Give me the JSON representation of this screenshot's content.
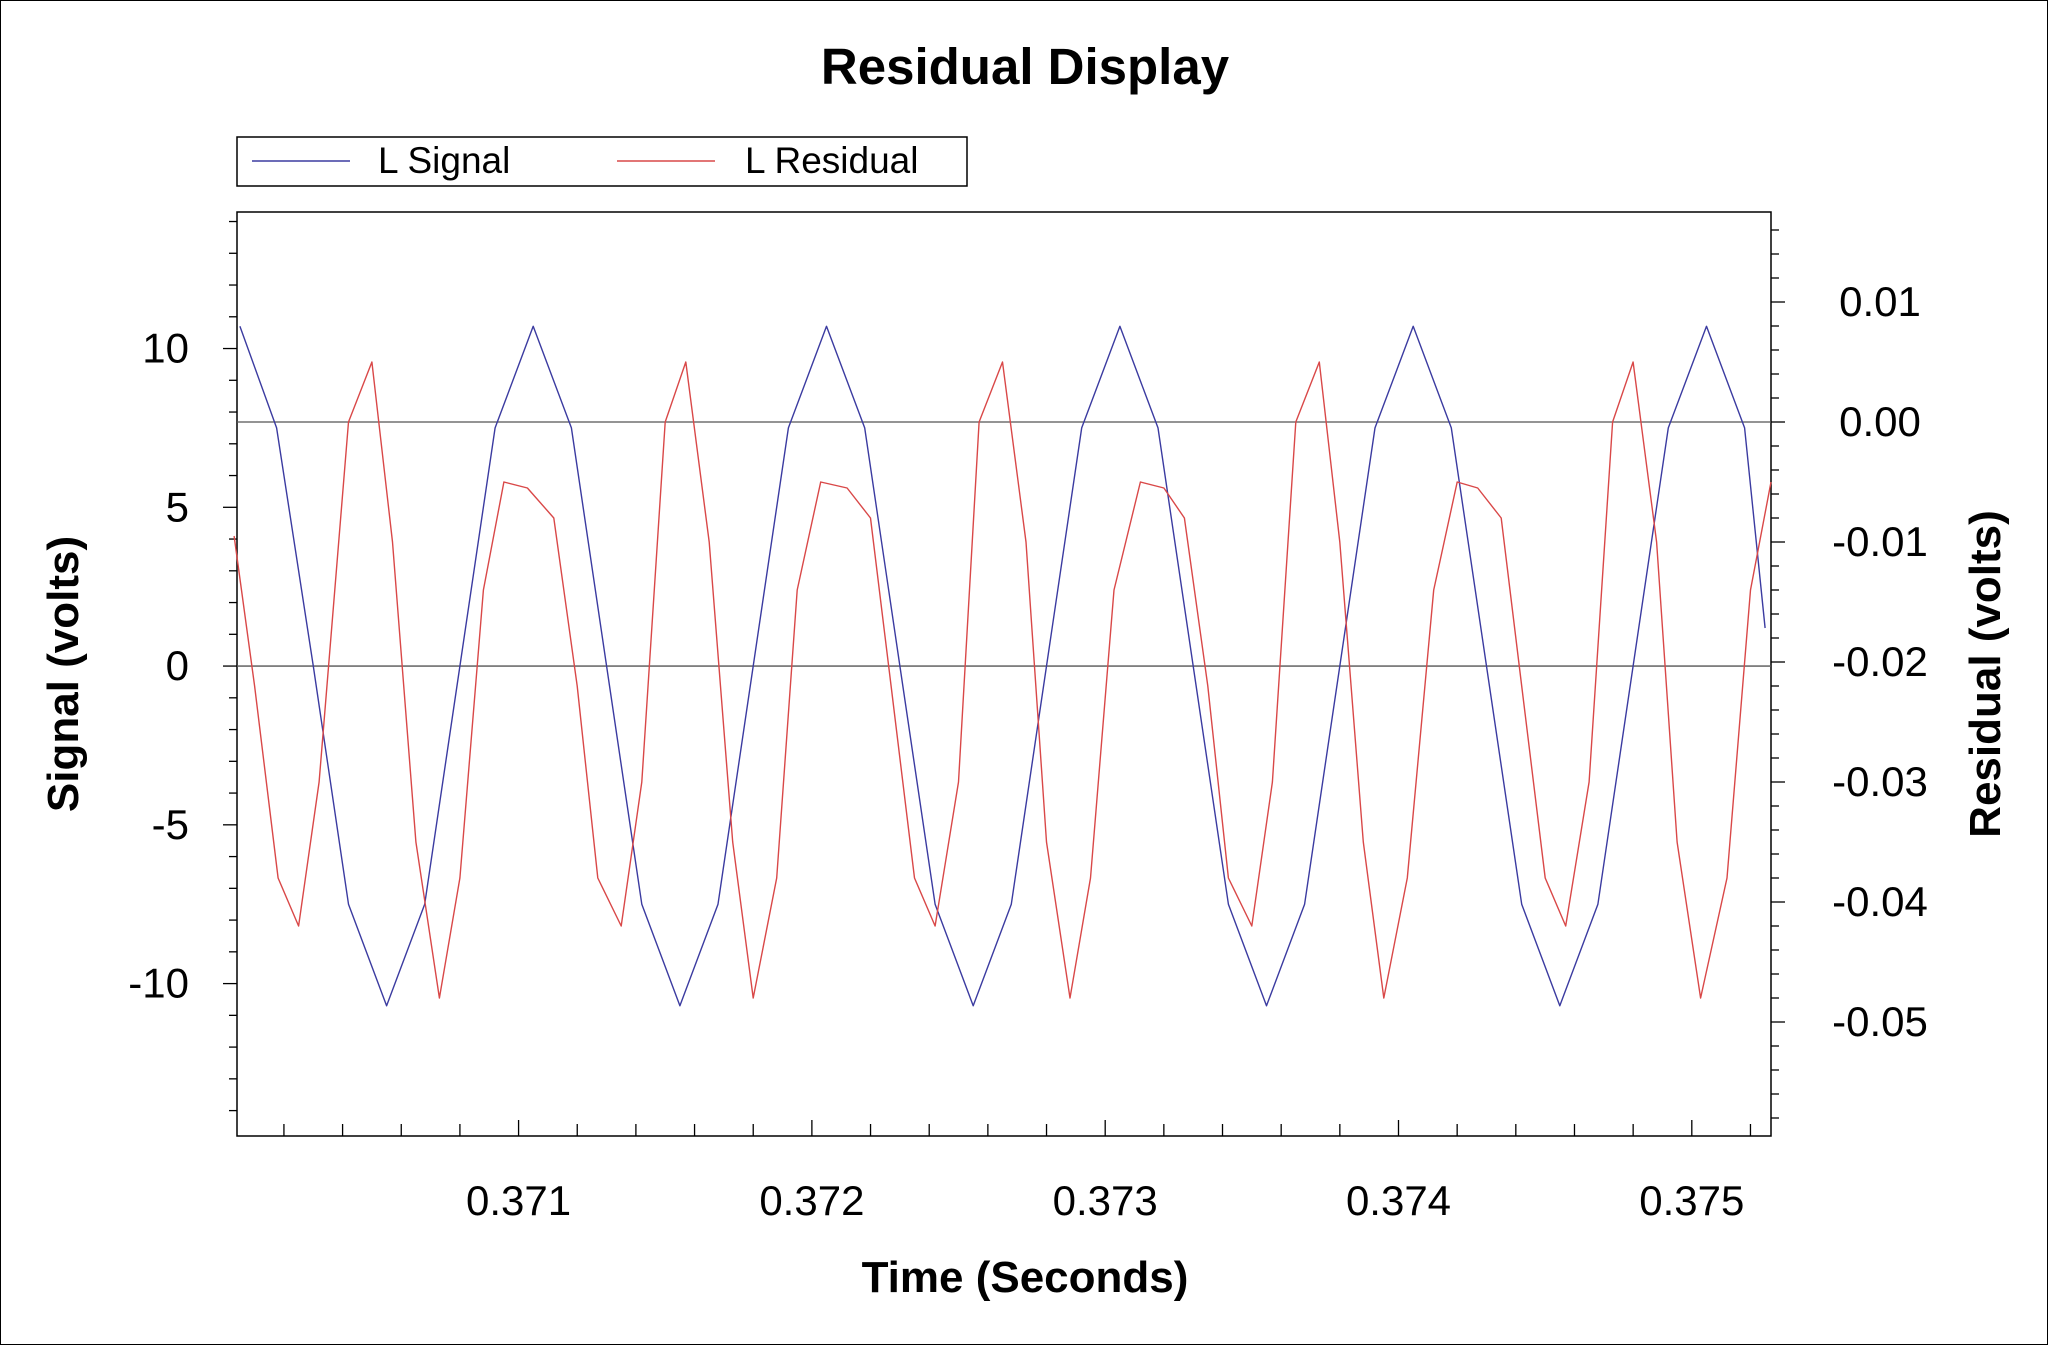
{
  "chart_data": {
    "type": "line",
    "title": "Residual Display",
    "xlabel": "Time (Seconds)",
    "ylabel": "Signal (volts)",
    "y2label": "Residual (volts)",
    "xlim": [
      0.37004,
      0.37527
    ],
    "ylim": [
      -14.8,
      14.3
    ],
    "y2lim": [
      -0.0595,
      0.0175
    ],
    "x_ticks": [
      0.371,
      0.372,
      0.373,
      0.374,
      0.375
    ],
    "x_tick_labels": [
      "0.371",
      "0.372",
      "0.373",
      "0.374",
      "0.375"
    ],
    "y_ticks": [
      10,
      5,
      0,
      -5,
      -10
    ],
    "y_tick_labels": [
      "10",
      "5",
      "0",
      "-5",
      "-10"
    ],
    "y2_ticks": [
      0.01,
      0.0,
      -0.01,
      -0.02,
      -0.03,
      -0.04,
      -0.05
    ],
    "y2_tick_labels": [
      "0.01",
      "0.00",
      "-0.01",
      "-0.02",
      "-0.03",
      "-0.04",
      "-0.05"
    ],
    "grid": false,
    "reference_lines": [
      {
        "axis": "y",
        "value": 0
      },
      {
        "axis": "y2",
        "value": 0.0
      }
    ],
    "legend_position": "top-left",
    "series": [
      {
        "name": "L Signal",
        "axis": "left",
        "color": "#3b3ba0",
        "x": [
          0.37005,
          0.370175,
          0.3703,
          0.37042,
          0.37055,
          0.37068,
          0.3708,
          0.37092,
          0.37105,
          0.37118,
          0.3713,
          0.37142,
          0.37155,
          0.37168,
          0.3718,
          0.37192,
          0.37205,
          0.37218,
          0.3723,
          0.37242,
          0.37255,
          0.37268,
          0.3728,
          0.37292,
          0.37305,
          0.37318,
          0.3733,
          0.37342,
          0.37355,
          0.37368,
          0.3738,
          0.37392,
          0.37405,
          0.37418,
          0.3743,
          0.37442,
          0.37455,
          0.37468,
          0.3748,
          0.37492,
          0.37505,
          0.37518,
          0.37525
        ],
        "y": [
          10.7,
          7.5,
          0,
          -7.5,
          -10.7,
          -7.5,
          0,
          7.5,
          10.7,
          7.5,
          0,
          -7.5,
          -10.7,
          -7.5,
          0,
          7.5,
          10.7,
          7.5,
          0,
          -7.5,
          -10.7,
          -7.5,
          0,
          7.5,
          10.7,
          7.5,
          0,
          -7.5,
          -10.7,
          -7.5,
          0,
          7.5,
          10.7,
          7.5,
          0,
          -7.5,
          -10.7,
          -7.5,
          0,
          7.5,
          10.7,
          7.5,
          1.2
        ]
      },
      {
        "name": "L Residual",
        "axis": "right",
        "color": "#d94848",
        "x": [
          0.37003,
          0.3701,
          0.37018,
          0.37025,
          0.37032,
          0.37042,
          0.3705,
          0.37057,
          0.37065,
          0.37073,
          0.3708,
          0.37088,
          0.37095,
          0.37103,
          0.37112,
          0.3712,
          0.37127,
          0.37135,
          0.37142,
          0.3715,
          0.37157,
          0.37165,
          0.37173,
          0.3718,
          0.37188,
          0.37195,
          0.37203,
          0.37212,
          0.3722,
          0.37227,
          0.37235,
          0.37242,
          0.3725,
          0.37257,
          0.37265,
          0.37273,
          0.3728,
          0.37288,
          0.37295,
          0.37303,
          0.37312,
          0.3732,
          0.37327,
          0.37335,
          0.37342,
          0.3735,
          0.37357,
          0.37365,
          0.37373,
          0.3738,
          0.37388,
          0.37395,
          0.37403,
          0.37412,
          0.3742,
          0.37427,
          0.37435,
          0.37442,
          0.3745,
          0.37457,
          0.37465,
          0.37473,
          0.3748,
          0.37488,
          0.37495,
          0.37503,
          0.37512,
          0.3752,
          0.37527
        ],
        "y": [
          -0.0095,
          -0.022,
          -0.038,
          -0.042,
          -0.03,
          -0.0,
          0.005,
          -0.01,
          -0.035,
          -0.048,
          -0.038,
          -0.014,
          -0.005,
          -0.0055,
          -0.008,
          -0.022,
          -0.038,
          -0.042,
          -0.03,
          -0.0,
          0.005,
          -0.01,
          -0.035,
          -0.048,
          -0.038,
          -0.014,
          -0.005,
          -0.0055,
          -0.008,
          -0.022,
          -0.038,
          -0.042,
          -0.03,
          -0.0,
          0.005,
          -0.01,
          -0.035,
          -0.048,
          -0.038,
          -0.014,
          -0.005,
          -0.0055,
          -0.008,
          -0.022,
          -0.038,
          -0.042,
          -0.03,
          -0.0,
          0.005,
          -0.01,
          -0.035,
          -0.048,
          -0.038,
          -0.014,
          -0.005,
          -0.0055,
          -0.008,
          -0.022,
          -0.038,
          -0.042,
          -0.03,
          -0.0,
          0.005,
          -0.01,
          -0.035,
          -0.048,
          -0.038,
          -0.014,
          -0.005
        ]
      }
    ]
  }
}
